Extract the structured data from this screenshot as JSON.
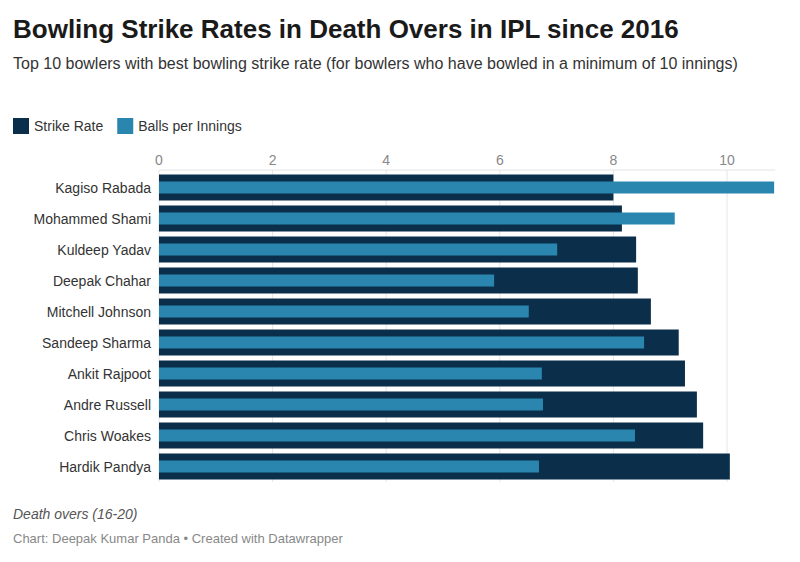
{
  "chart_data": {
    "type": "bar",
    "orientation": "horizontal",
    "title": "Bowling Strike Rates in Death Overs in IPL since 2016",
    "subtitle": "Top 10 bowlers with best bowling strike rate (for bowlers who have bowled in a minimum of 10 innings)",
    "note": "Death overs (16-20)",
    "source": "Chart: Deepak Kumar Panda • Created with Datawrapper",
    "categories": [
      "Kagiso Rabada",
      "Mohammed Shami",
      "Kuldeep Yadav",
      "Deepak Chahar",
      "Mitchell Johnson",
      "Sandeep Sharma",
      "Ankit Rajpoot",
      "Andre Russell",
      "Chris Woakes",
      "Hardik Pandya"
    ],
    "series": [
      {
        "name": "Strike Rate",
        "color": "#0b2f4b",
        "values": [
          8.0,
          8.15,
          8.4,
          8.43,
          8.66,
          9.15,
          9.26,
          9.47,
          9.58,
          10.05
        ]
      },
      {
        "name": "Balls per Innings",
        "color": "#2a86ae",
        "values": [
          10.83,
          9.08,
          7.01,
          5.9,
          6.51,
          8.54,
          6.74,
          6.76,
          8.38,
          6.69
        ]
      }
    ],
    "xlim": [
      0,
      10.85
    ],
    "xticks": [
      0,
      2,
      4,
      6,
      8,
      10
    ],
    "grid": true,
    "legend": "top-left"
  }
}
